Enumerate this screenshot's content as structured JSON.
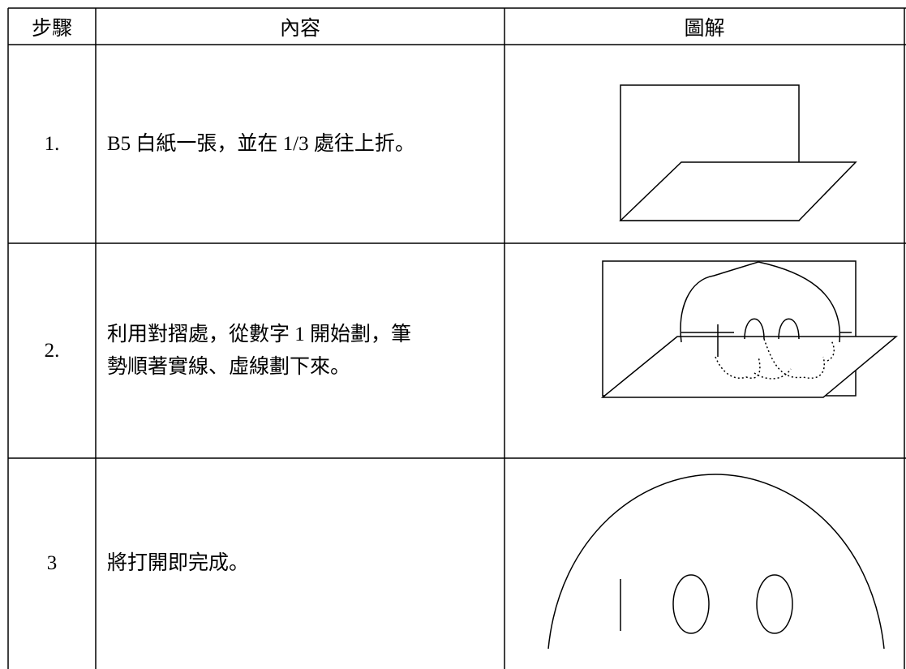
{
  "table": {
    "header": [
      "步驟",
      "內容",
      "圖解"
    ],
    "rows": [
      [
        "1.",
        [
          "B5 白紙一張，並在 1/3 處往上折。"
        ]
      ],
      [
        "2.",
        [
          "利用對摺處，從數字 1 開始劃，筆",
          "勢順著實線、虛線劃下來。"
        ]
      ],
      [
        "3",
        [
          "將打開即完成。"
        ]
      ]
    ]
  }
}
